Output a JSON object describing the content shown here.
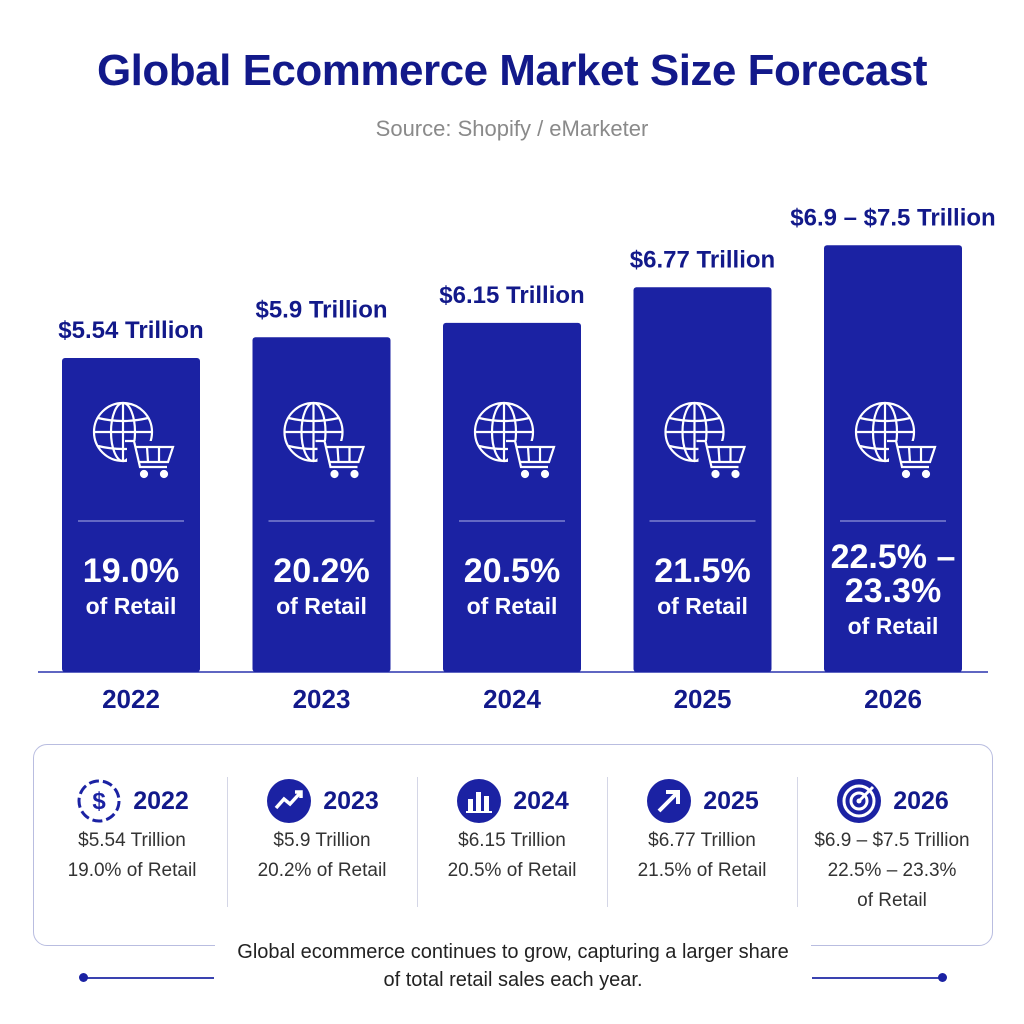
{
  "chart_data": {
    "type": "bar",
    "title": "Global Ecommerce Market Size Forecast",
    "subtitle": "Source: Shopify / eMarketer",
    "categories": [
      "2022",
      "2023",
      "2024",
      "2025",
      "2026"
    ],
    "values": [
      5.54,
      5.9,
      6.15,
      6.77,
      7.5
    ],
    "value_labels": [
      "$5.54 Trillion",
      "$5.9 Trillion",
      "$6.15 Trillion",
      "$6.77 Trillion",
      "$6.9 – $7.5 Trillion"
    ],
    "share_lines": [
      [
        "19.0%"
      ],
      [
        "20.2%"
      ],
      [
        "20.5%"
      ],
      [
        "21.5%"
      ],
      [
        "22.5% –",
        "23.3%"
      ]
    ],
    "share_suffix": "of Retail",
    "bar_icon": "globe-cart-icon",
    "bar_color": "#1b22a3",
    "text_color": "#12198a",
    "grid": false,
    "legend": "none"
  },
  "summary": {
    "items": [
      {
        "year": "2022",
        "icon": "dollar-circle-icon",
        "lines": [
          "$5.54 Trillion",
          "19.0% of Retail"
        ]
      },
      {
        "year": "2023",
        "icon": "trend-chart-icon",
        "lines": [
          "$5.9 Trillion",
          "20.2% of Retail"
        ]
      },
      {
        "year": "2024",
        "icon": "bar-chart-icon",
        "lines": [
          "$6.15 Trillion",
          "20.5% of Retail"
        ]
      },
      {
        "year": "2025",
        "icon": "arrow-up-right-icon",
        "lines": [
          "$6.77 Trillion",
          "21.5% of Retail"
        ]
      },
      {
        "year": "2026",
        "icon": "target-icon",
        "lines": [
          "$6.9 – $7.5 Trillion",
          "22.5% – 23.3%",
          "of Retail"
        ]
      }
    ]
  },
  "footer": {
    "lines": [
      "Global ecommerce continues to grow, capturing a larger share",
      "of total retail sales each year."
    ]
  }
}
